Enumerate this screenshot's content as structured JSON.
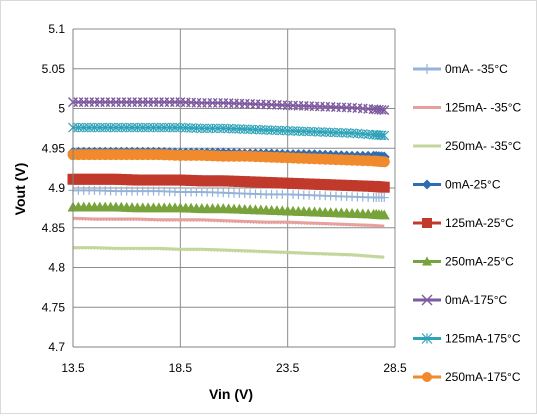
{
  "chart_data": {
    "type": "line",
    "title": "",
    "xlabel": "Vin (V)",
    "ylabel": "Vout (V)",
    "xlim": [
      13.5,
      28.5
    ],
    "ylim": [
      4.7,
      5.1
    ],
    "xticks": [
      13.5,
      18.5,
      23.5,
      28.5
    ],
    "xtick_labels": [
      "13.5",
      "18.5",
      "23.5",
      "28.5"
    ],
    "yticks": [
      4.7,
      4.75,
      4.8,
      4.85,
      4.9,
      4.95,
      5.0,
      5.05,
      5.1
    ],
    "ytick_labels": [
      "4.7",
      "4.75",
      "4.8",
      "4.85",
      "4.9",
      "4.95",
      "5",
      "5.05",
      "5.1"
    ],
    "grid": "major gridlines on both axes",
    "legend_position": "right",
    "x": [
      13.5,
      14.5,
      15.5,
      16.5,
      17.5,
      18.5,
      19.5,
      20.5,
      21.5,
      22.5,
      23.5,
      24.5,
      25.5,
      26.5,
      27.5,
      28
    ],
    "series": [
      {
        "name": "0mA- -35°C",
        "color": "#95b3d7",
        "marker": "plus",
        "values": [
          4.897,
          4.897,
          4.896,
          4.896,
          4.896,
          4.895,
          4.895,
          4.894,
          4.893,
          4.892,
          4.892,
          4.891,
          4.89,
          4.889,
          4.888,
          4.888
        ]
      },
      {
        "name": "125mA- -35°C",
        "color": "#e6a09e",
        "marker": "none",
        "values": [
          4.862,
          4.861,
          4.861,
          4.861,
          4.86,
          4.86,
          4.86,
          4.859,
          4.858,
          4.857,
          4.857,
          4.856,
          4.855,
          4.854,
          4.853,
          4.852
        ]
      },
      {
        "name": "250mA- -35°C",
        "color": "#c3d69b",
        "marker": "none",
        "values": [
          4.825,
          4.825,
          4.824,
          4.824,
          4.824,
          4.823,
          4.823,
          4.822,
          4.821,
          4.82,
          4.819,
          4.818,
          4.817,
          4.816,
          4.814,
          4.813
        ]
      },
      {
        "name": "0mA-25°C",
        "color": "#2e6db4",
        "marker": "diamond",
        "values": [
          4.945,
          4.945,
          4.945,
          4.945,
          4.945,
          4.944,
          4.944,
          4.944,
          4.943,
          4.943,
          4.942,
          4.942,
          4.941,
          4.94,
          4.94,
          4.939
        ]
      },
      {
        "name": "125mA-25°C",
        "color": "#c0392b",
        "marker": "square",
        "values": [
          4.911,
          4.911,
          4.911,
          4.91,
          4.91,
          4.91,
          4.909,
          4.909,
          4.908,
          4.907,
          4.906,
          4.905,
          4.904,
          4.903,
          4.902,
          4.901
        ]
      },
      {
        "name": "250mA-25°C",
        "color": "#77a33a",
        "marker": "triangle",
        "values": [
          4.876,
          4.876,
          4.876,
          4.875,
          4.875,
          4.875,
          4.874,
          4.874,
          4.873,
          4.872,
          4.871,
          4.87,
          4.869,
          4.868,
          4.867,
          4.866
        ]
      },
      {
        "name": "0mA-175°C",
        "color": "#7e5aa0",
        "marker": "x",
        "values": [
          5.008,
          5.008,
          5.008,
          5.008,
          5.008,
          5.008,
          5.007,
          5.007,
          5.006,
          5.005,
          5.004,
          5.003,
          5.002,
          5.001,
          4.999,
          4.998
        ]
      },
      {
        "name": "125mA-175°C",
        "color": "#31a3b8",
        "marker": "star",
        "values": [
          4.976,
          4.976,
          4.976,
          4.976,
          4.976,
          4.976,
          4.975,
          4.975,
          4.974,
          4.973,
          4.972,
          4.971,
          4.97,
          4.969,
          4.967,
          4.966
        ]
      },
      {
        "name": "250mA-175°C",
        "color": "#f08a2c",
        "marker": "circle",
        "values": [
          4.942,
          4.942,
          4.942,
          4.942,
          4.942,
          4.941,
          4.941,
          4.94,
          4.94,
          4.939,
          4.938,
          4.937,
          4.936,
          4.935,
          4.934,
          4.933
        ]
      }
    ]
  }
}
